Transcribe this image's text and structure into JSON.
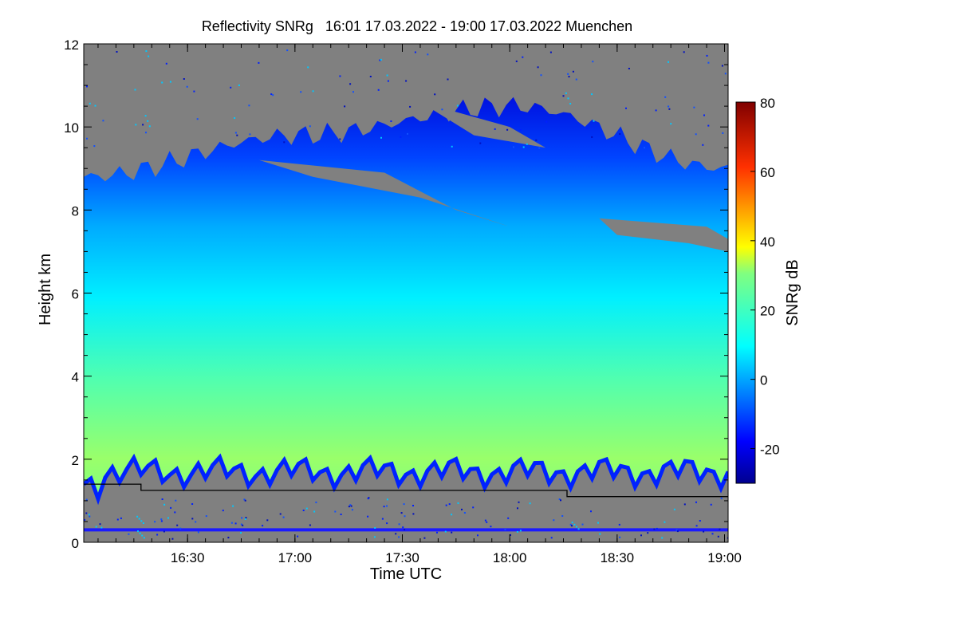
{
  "chart_data": {
    "type": "heatmap",
    "title": "Reflectivity SNRg   16:01 17.03.2022 - 19:00 17.03.2022 Muenchen",
    "xlabel": "Time UTC",
    "ylabel": "Height km",
    "xlim": [
      "16:01",
      "19:01"
    ],
    "ylim": [
      0,
      12
    ],
    "x_ticks": [
      "16:30",
      "17:00",
      "17:30",
      "18:00",
      "18:30",
      "19:00"
    ],
    "y_ticks": [
      "0",
      "2",
      "4",
      "6",
      "8",
      "10",
      "12"
    ],
    "colorbar": {
      "label": "SNRg dB",
      "range": [
        -30,
        80
      ],
      "ticks": [
        "-20",
        "0",
        "20",
        "40",
        "60",
        "80"
      ],
      "colormap": "jet"
    },
    "no_signal_color": "#808080",
    "signal_layer": {
      "base_km": 1.7,
      "top_km": [
        8.8,
        9.8,
        10.5,
        9.0
      ],
      "values_db": {
        "near_base": 24,
        "at_4km": 18,
        "at_6km": 10,
        "at_8km": -5,
        "top": -22
      }
    },
    "boundary_line_km": [
      {
        "from": "16:01",
        "to": "16:17",
        "value": 1.4
      },
      {
        "from": "16:17",
        "to": "18:16",
        "value": 1.25
      },
      {
        "from": "18:16",
        "to": "19:01",
        "value": 1.1
      }
    ],
    "ground_clutter_km": 0.3
  }
}
